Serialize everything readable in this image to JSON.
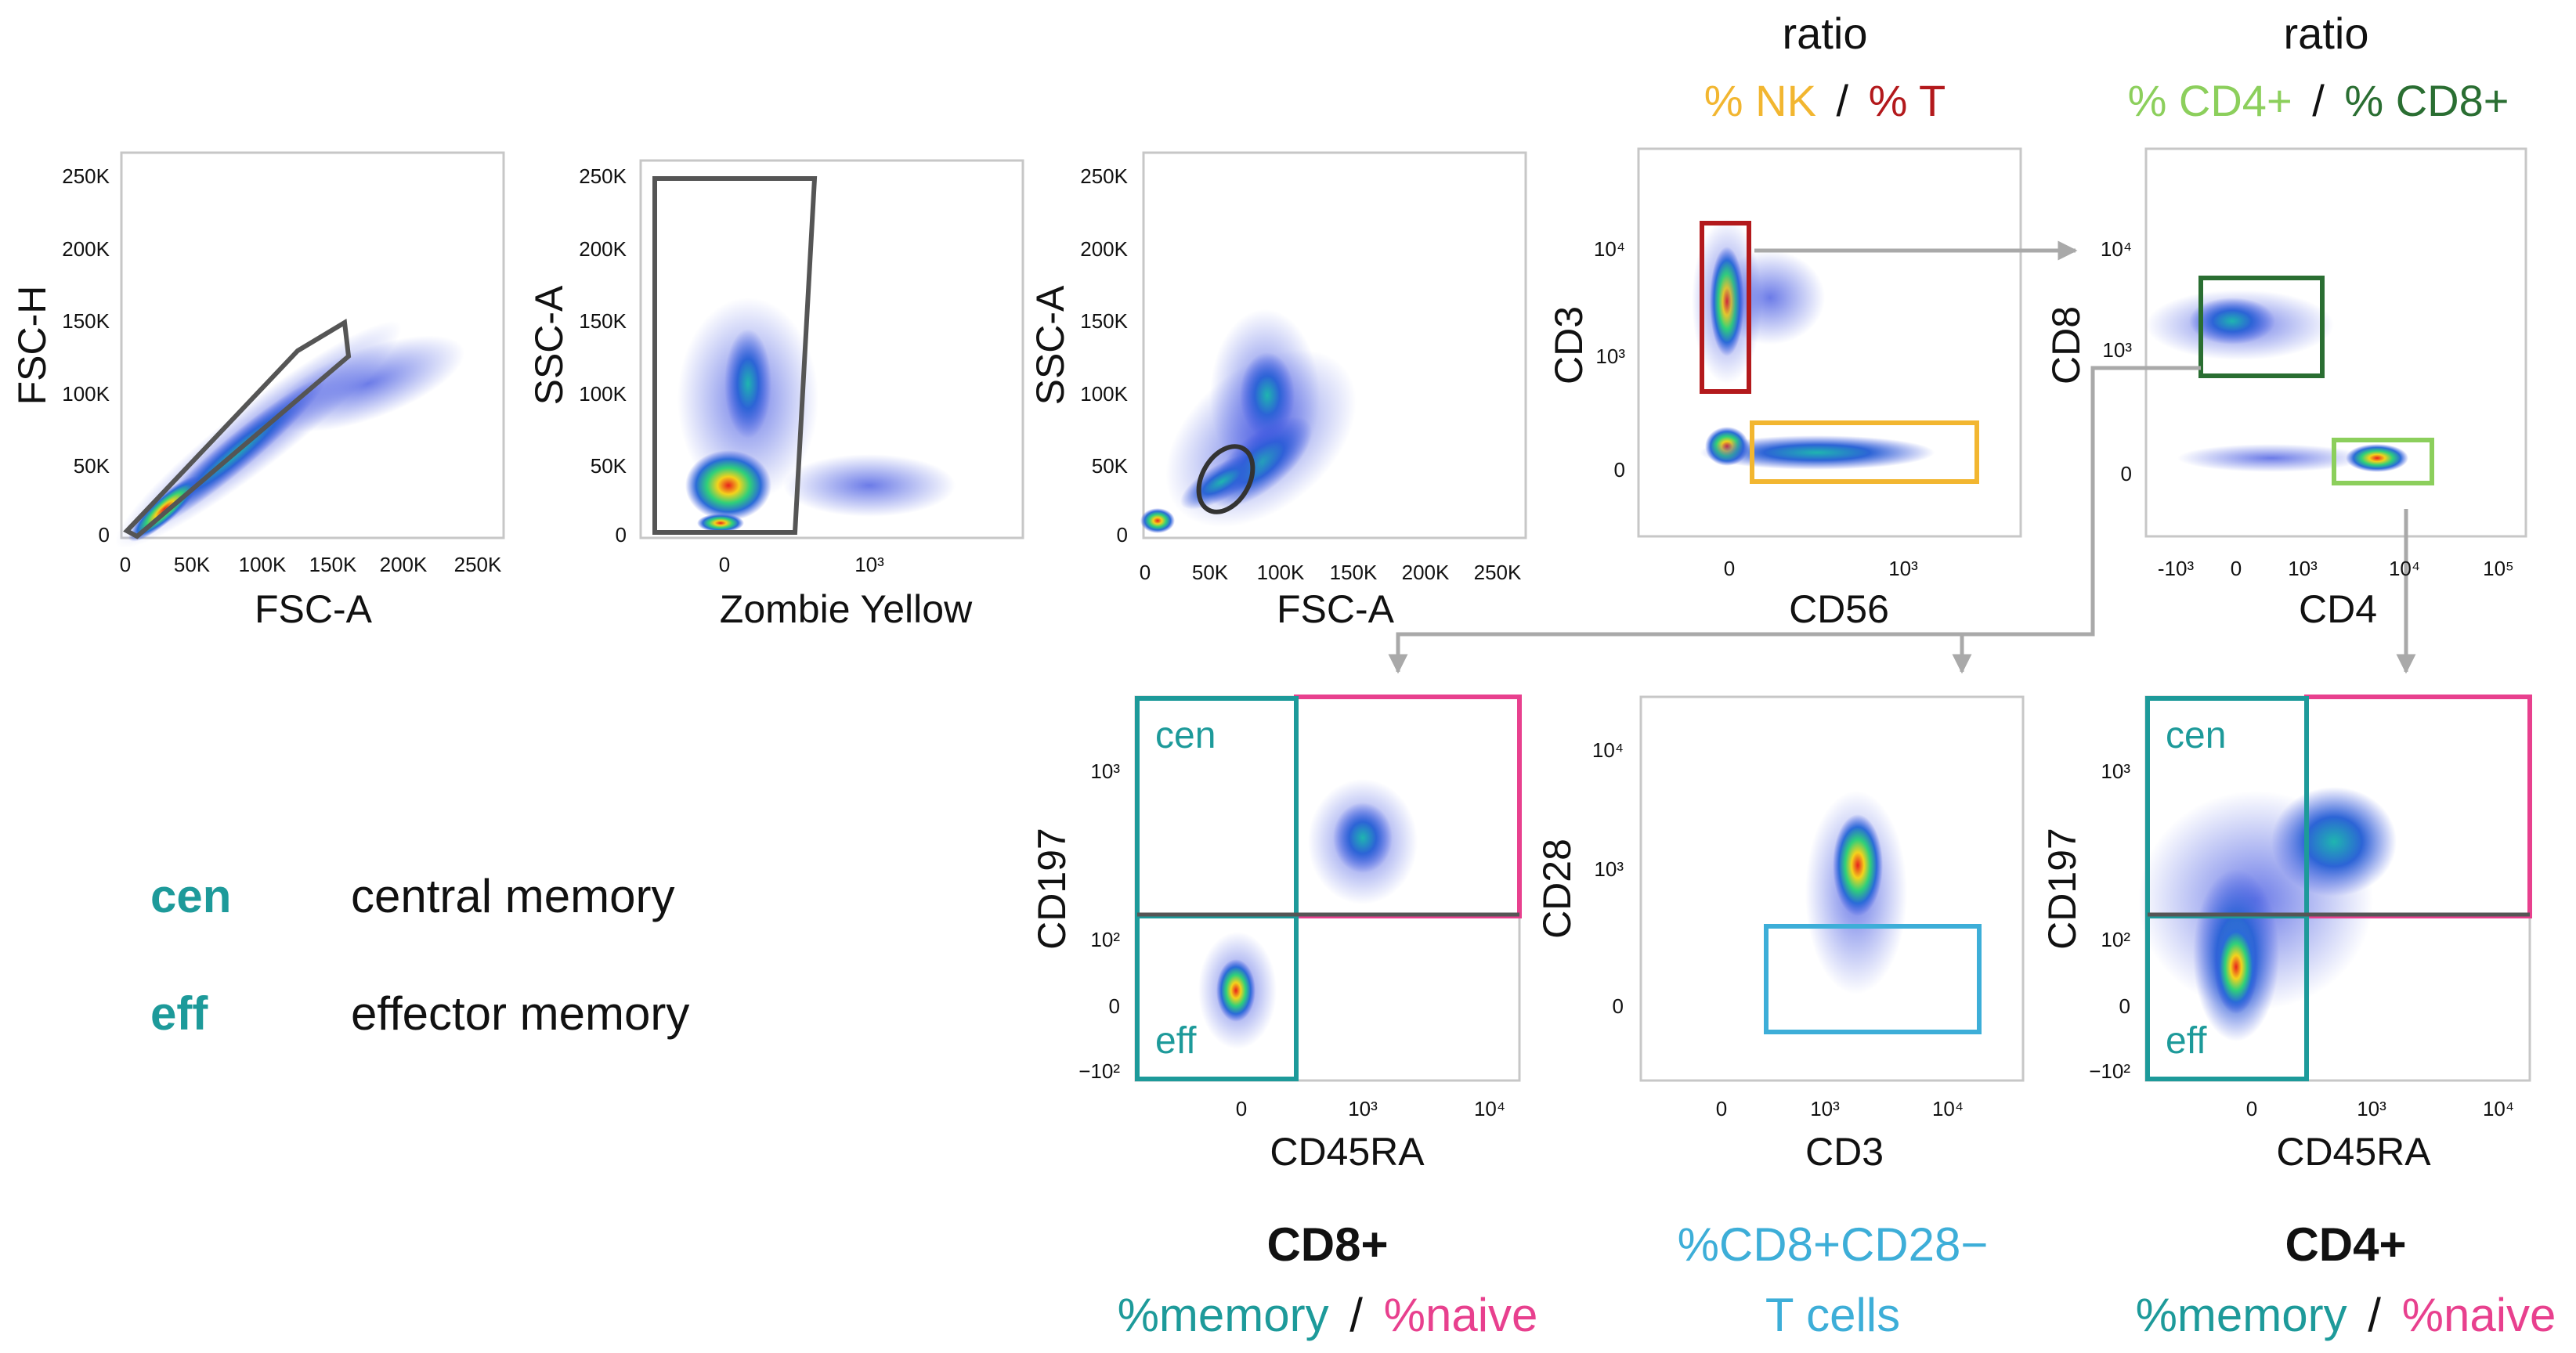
{
  "plots": [
    {
      "id": "fsc",
      "x_label": "FSC-A",
      "y_label": "FSC-H",
      "x_ticks": [
        "0",
        "50K",
        "100K",
        "150K",
        "200K",
        "250K"
      ],
      "y_ticks": [
        "0",
        "50K",
        "100K",
        "150K",
        "200K",
        "250K"
      ]
    },
    {
      "id": "zombie",
      "x_label": "Zombie Yellow",
      "y_label": "SSC-A",
      "x_ticks": [
        "0",
        "10³"
      ],
      "y_ticks": [
        "0",
        "50K",
        "100K",
        "150K",
        "200K",
        "250K"
      ]
    },
    {
      "id": "ssc",
      "x_label": "FSC-A",
      "y_label": "SSC-A",
      "x_ticks": [
        "0",
        "50K",
        "100K",
        "150K",
        "200K",
        "250K"
      ],
      "y_ticks": [
        "0",
        "50K",
        "100K",
        "150K",
        "200K",
        "250K"
      ]
    },
    {
      "id": "cd3cd56",
      "x_label": "CD56",
      "y_label": "CD3",
      "x_ticks": [
        "0",
        "10³"
      ],
      "y_ticks": [
        "0",
        "10³",
        "10⁴"
      ]
    },
    {
      "id": "cd8cd4",
      "x_label": "CD4",
      "y_label": "CD8",
      "x_ticks": [
        "-10³",
        "0",
        "10³",
        "10⁴",
        "10⁵"
      ],
      "y_ticks": [
        "0",
        "10³",
        "10⁴"
      ]
    },
    {
      "id": "cd8mem",
      "x_label": "CD45RA",
      "y_label": "CD197",
      "x_ticks": [
        "0",
        "10³",
        "10⁴"
      ],
      "y_ticks": [
        "−10²",
        "0",
        "10²",
        "10³"
      ]
    },
    {
      "id": "cd28",
      "x_label": "CD3",
      "y_label": "CD28",
      "x_ticks": [
        "0",
        "10³",
        "10⁴"
      ],
      "y_ticks": [
        "0",
        "10³",
        "10⁴"
      ]
    },
    {
      "id": "cd4mem",
      "x_label": "CD45RA",
      "y_label": "CD197",
      "x_ticks": [
        "0",
        "10³",
        "10⁴"
      ],
      "y_ticks": [
        "−10²",
        "0",
        "10²",
        "10³"
      ]
    }
  ],
  "headers": {
    "nk_t": {
      "ratio": "ratio",
      "nk": "% NK",
      "sep": "/",
      "t": "% T"
    },
    "cd4_cd8": {
      "ratio": "ratio",
      "cd4": "% CD4+",
      "sep": "/",
      "cd8": "% CD8+"
    }
  },
  "quadrant_labels": {
    "cen": "cen",
    "eff": "eff"
  },
  "legend": [
    {
      "abbr": "cen",
      "text": "central memory"
    },
    {
      "abbr": "eff",
      "text": "effector memory"
    }
  ],
  "captions": {
    "cd8": {
      "title": "CD8+",
      "memory": "%memory",
      "sep": "/",
      "naive": "%naive"
    },
    "cd28": {
      "line1": "%CD8+CD28−",
      "line2": "T cells"
    },
    "cd4": {
      "title": "CD4+",
      "memory": "%memory",
      "sep": "/",
      "naive": "%naive"
    }
  },
  "colors": {
    "nk": "#f2b630",
    "t": "#b3191c",
    "cd4": "#8ccf5c",
    "cd8": "#2a6e32",
    "teal": "#1d9a9a",
    "pink": "#e8408e",
    "cd28": "#3daed8",
    "gate": "#555555"
  }
}
